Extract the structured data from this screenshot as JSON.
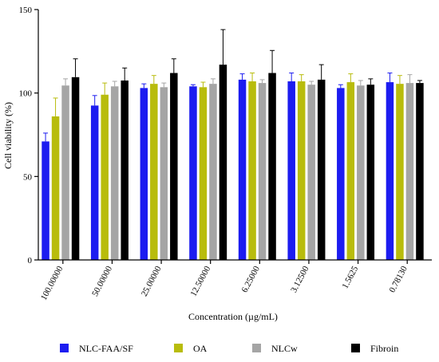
{
  "chart_data": {
    "type": "bar",
    "title": "",
    "xlabel": "Concentration (µg/mL)",
    "ylabel": "Cell viability (%)",
    "ylim": [
      0,
      150
    ],
    "yticks": [
      0,
      50,
      100,
      150
    ],
    "grid": false,
    "legend_position": "bottom",
    "categories": [
      "100.00000",
      "50.00000",
      "25.00000",
      "12.50000",
      "6.25000",
      "3.12500",
      "1.5625",
      "0.78130"
    ],
    "series": [
      {
        "name": "NLC-FAA/SF",
        "color": "#1c1cf0",
        "values": [
          71,
          92.5,
          103,
          104,
          108,
          107,
          103,
          106.5
        ],
        "errors": [
          5,
          6,
          2.5,
          1,
          3.5,
          5,
          2,
          5.5
        ]
      },
      {
        "name": "OA",
        "color": "#b8bc0c",
        "values": [
          86,
          99,
          105.5,
          103.5,
          107,
          107,
          106.5,
          105.5
        ],
        "errors": [
          11,
          7,
          5,
          3,
          5,
          4,
          5,
          5
        ]
      },
      {
        "name": "NLCw",
        "color": "#a5a5a5",
        "values": [
          104.5,
          104,
          103.5,
          105.5,
          106,
          105,
          104.5,
          106
        ],
        "errors": [
          4,
          3,
          2.5,
          3,
          2,
          2,
          3,
          5
        ]
      },
      {
        "name": "Fibroin",
        "color": "#000000",
        "values": [
          109.5,
          107.5,
          112,
          117,
          112,
          108,
          105,
          106
        ],
        "errors": [
          11,
          7.5,
          8.5,
          21,
          13.5,
          9,
          3.5,
          1.5
        ]
      }
    ]
  }
}
